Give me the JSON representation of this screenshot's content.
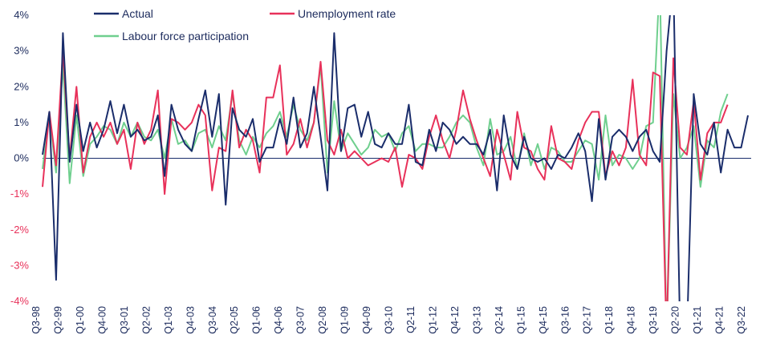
{
  "colors": {
    "actual": "#1a2d6b",
    "unemployment": "#e8315a",
    "participation": "#6fcf8e",
    "axis": "#1a2d6b",
    "negative_tick": "#e8315a",
    "positive_tick": "#1b2a5c"
  },
  "chart_data": {
    "type": "line",
    "ylim": [
      -4,
      4
    ],
    "y_ticks": [
      {
        "value": 4,
        "label": "4%"
      },
      {
        "value": 3,
        "label": "3%"
      },
      {
        "value": 2,
        "label": "2%"
      },
      {
        "value": 1,
        "label": "1%"
      },
      {
        "value": 0,
        "label": "0%"
      },
      {
        "value": -1,
        "label": "-1%"
      },
      {
        "value": -2,
        "label": "-2%"
      },
      {
        "value": -3,
        "label": "-3%"
      },
      {
        "value": -4,
        "label": "-4%"
      }
    ],
    "x_start": "Q3-98",
    "x_end": "Q3-22",
    "x_tick_labels": [
      "Q3-98",
      "Q2-99",
      "Q1-00",
      "Q4-00",
      "Q3-01",
      "Q2-02",
      "Q1-03",
      "Q4-03",
      "Q3-04",
      "Q2-05",
      "Q1-06",
      "Q4-06",
      "Q3-07",
      "Q2-08",
      "Q1-09",
      "Q4-09",
      "Q3-10",
      "Q2-11",
      "Q1-12",
      "Q4-12",
      "Q3-13",
      "Q2-14",
      "Q1-15",
      "Q4-15",
      "Q3-16",
      "Q2-17",
      "Q1-18",
      "Q4-18",
      "Q3-19",
      "Q2-20",
      "Q1-21",
      "Q4-21",
      "Q3-22"
    ],
    "legend": [
      {
        "key": "actual",
        "label": "Actual"
      },
      {
        "key": "unemployment",
        "label": "Unemployment rate"
      },
      {
        "key": "participation",
        "label": "Labour force participation"
      }
    ],
    "series": [
      {
        "key": "actual",
        "name": "Actual",
        "values": [
          0.1,
          1.3,
          -3.4,
          3.5,
          -0.1,
          1.5,
          0.2,
          1.0,
          0.3,
          0.8,
          1.6,
          0.7,
          1.5,
          0.6,
          0.8,
          0.5,
          0.6,
          1.2,
          -0.5,
          1.5,
          0.8,
          0.4,
          0.2,
          1.1,
          1.9,
          0.6,
          1.8,
          -1.3,
          1.4,
          0.8,
          0.6,
          1.1,
          -0.1,
          0.3,
          0.3,
          1.1,
          0.4,
          1.7,
          0.3,
          0.7,
          2.0,
          0.6,
          -0.9,
          3.5,
          0.2,
          1.4,
          1.5,
          0.6,
          1.3,
          0.4,
          0.3,
          0.7,
          0.4,
          0.4,
          1.5,
          -0.1,
          -0.2,
          0.8,
          0.2,
          1.0,
          0.8,
          0.4,
          0.6,
          0.4,
          0.4,
          0.1,
          0.8,
          -0.9,
          1.2,
          0.1,
          -0.3,
          0.6,
          0.0,
          -0.1,
          0.0,
          -0.3,
          0.1,
          0.0,
          0.3,
          0.7,
          0.2,
          -1.2,
          1.1,
          -0.6,
          0.6,
          0.8,
          0.6,
          0.2,
          0.6,
          0.8,
          0.2,
          -0.1,
          3.0,
          5.0,
          -5.0,
          -5.0,
          1.8,
          0.4,
          0.1,
          1.0,
          -0.4,
          0.8,
          0.3,
          0.3,
          1.2
        ]
      },
      {
        "key": "unemployment",
        "name": "Unemployment rate",
        "values": [
          -0.8,
          1.3,
          -0.2,
          3.0,
          0.0,
          2.0,
          -0.4,
          0.6,
          1.0,
          0.6,
          1.0,
          0.4,
          0.8,
          -0.3,
          1.0,
          0.4,
          0.8,
          1.9,
          -1.0,
          1.1,
          1.0,
          0.8,
          1.0,
          1.5,
          1.2,
          -0.9,
          0.3,
          0.2,
          1.9,
          0.3,
          0.8,
          0.5,
          -0.4,
          1.7,
          1.7,
          2.6,
          0.1,
          0.4,
          1.1,
          0.3,
          1.0,
          2.7,
          0.5,
          0.1,
          0.8,
          0.0,
          0.2,
          0.0,
          -0.2,
          -0.1,
          0.0,
          -0.1,
          0.3,
          -0.8,
          0.1,
          0.0,
          -0.3,
          0.6,
          1.2,
          0.5,
          0.0,
          0.8,
          1.9,
          1.1,
          0.5,
          0.0,
          -0.5,
          0.8,
          0.1,
          -0.6,
          1.3,
          0.3,
          0.2,
          -0.3,
          -0.6,
          0.9,
          0.0,
          -0.1,
          -0.3,
          0.5,
          1.0,
          1.3,
          1.3,
          -0.5,
          0.2,
          -0.2,
          0.3,
          2.2,
          0.1,
          -0.2,
          2.4,
          2.3,
          -5.0,
          2.8,
          0.3,
          0.1,
          1.6,
          -0.6,
          0.7,
          1.0,
          1.0,
          1.5
        ]
      },
      {
        "key": "participation",
        "name": "Labour force participation",
        "values": [
          -0.3,
          1.2,
          -0.4,
          2.6,
          -0.7,
          1.2,
          -0.5,
          0.4,
          0.6,
          0.9,
          0.8,
          0.4,
          1.0,
          0.6,
          1.0,
          0.6,
          0.5,
          0.8,
          0.0,
          1.1,
          0.4,
          0.5,
          0.2,
          0.7,
          0.8,
          0.3,
          0.9,
          0.5,
          1.8,
          0.5,
          0.1,
          0.6,
          0.3,
          0.7,
          0.9,
          1.3,
          0.6,
          1.5,
          0.8,
          0.5,
          1.0,
          2.6,
          -0.4,
          1.6,
          0.2,
          0.7,
          0.4,
          0.1,
          0.3,
          0.8,
          0.6,
          0.7,
          0.2,
          0.7,
          0.9,
          0.2,
          0.4,
          0.4,
          0.3,
          0.3,
          0.6,
          1.0,
          1.2,
          1.0,
          0.3,
          -0.2,
          1.1,
          0.1,
          0.2,
          0.6,
          -0.3,
          0.7,
          -0.2,
          0.4,
          -0.3,
          0.3,
          0.2,
          -0.1,
          -0.1,
          0.2,
          0.5,
          0.4,
          -0.6,
          1.2,
          -0.2,
          0.1,
          0.0,
          -0.3,
          0.0,
          0.9,
          1.0,
          5.0,
          -5.0,
          1.8,
          0.0,
          0.3,
          0.9,
          -0.8,
          0.5,
          0.3,
          1.3,
          1.8
        ]
      }
    ]
  }
}
